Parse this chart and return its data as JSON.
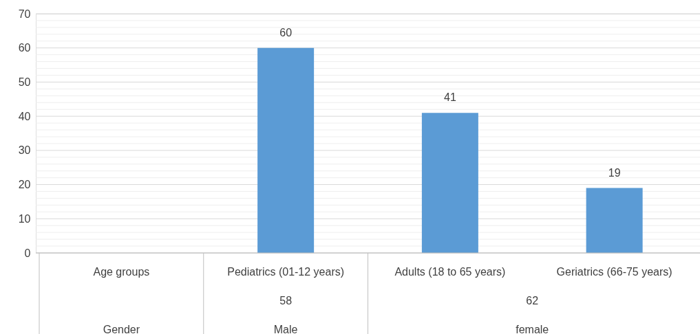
{
  "chart_data": {
    "type": "bar",
    "categories": [
      "Age groups",
      "Pediatrics (01-12 years)",
      "Adults (18 to 65 years)",
      "Geriatrics (66-75 years)"
    ],
    "values": [
      null,
      60,
      41,
      19
    ],
    "color": "#5b9bd5",
    "data_labels": true,
    "ylim": [
      0,
      70
    ],
    "yticks": [
      0,
      {
        "value": 2,
        "label": null
      },
      {
        "value": 4,
        "label": null
      },
      {
        "value": 6,
        "label": null
      },
      {
        "value": 8,
        "label": null
      },
      10,
      {
        "value": 12,
        "label": null
      },
      {
        "value": 14,
        "label": null
      },
      {
        "value": 16,
        "label": null
      },
      {
        "value": 18,
        "label": null
      },
      20,
      {
        "value": 22,
        "label": null
      },
      {
        "value": 24,
        "label": null
      },
      {
        "value": 26,
        "label": null
      },
      {
        "value": 28,
        "label": null
      },
      30,
      {
        "value": 32,
        "label": null
      },
      {
        "value": 34,
        "label": null
      },
      {
        "value": 36,
        "label": null
      },
      {
        "value": 38,
        "label": null
      },
      40,
      {
        "value": 42,
        "label": null
      },
      {
        "value": 44,
        "label": null
      },
      {
        "value": 46,
        "label": null
      },
      {
        "value": 48,
        "label": null
      },
      50,
      {
        "value": 52,
        "label": null
      },
      {
        "value": 54,
        "label": null
      },
      {
        "value": 56,
        "label": null
      },
      {
        "value": 58,
        "label": null
      },
      60,
      {
        "value": 62,
        "label": null
      },
      {
        "value": 64,
        "label": null
      },
      {
        "value": 66,
        "label": null
      },
      {
        "value": 68,
        "label": null
      },
      70
    ],
    "grid": "y",
    "annotations": [
      "58",
      "62",
      "Gender",
      "Male",
      "female"
    ]
  }
}
